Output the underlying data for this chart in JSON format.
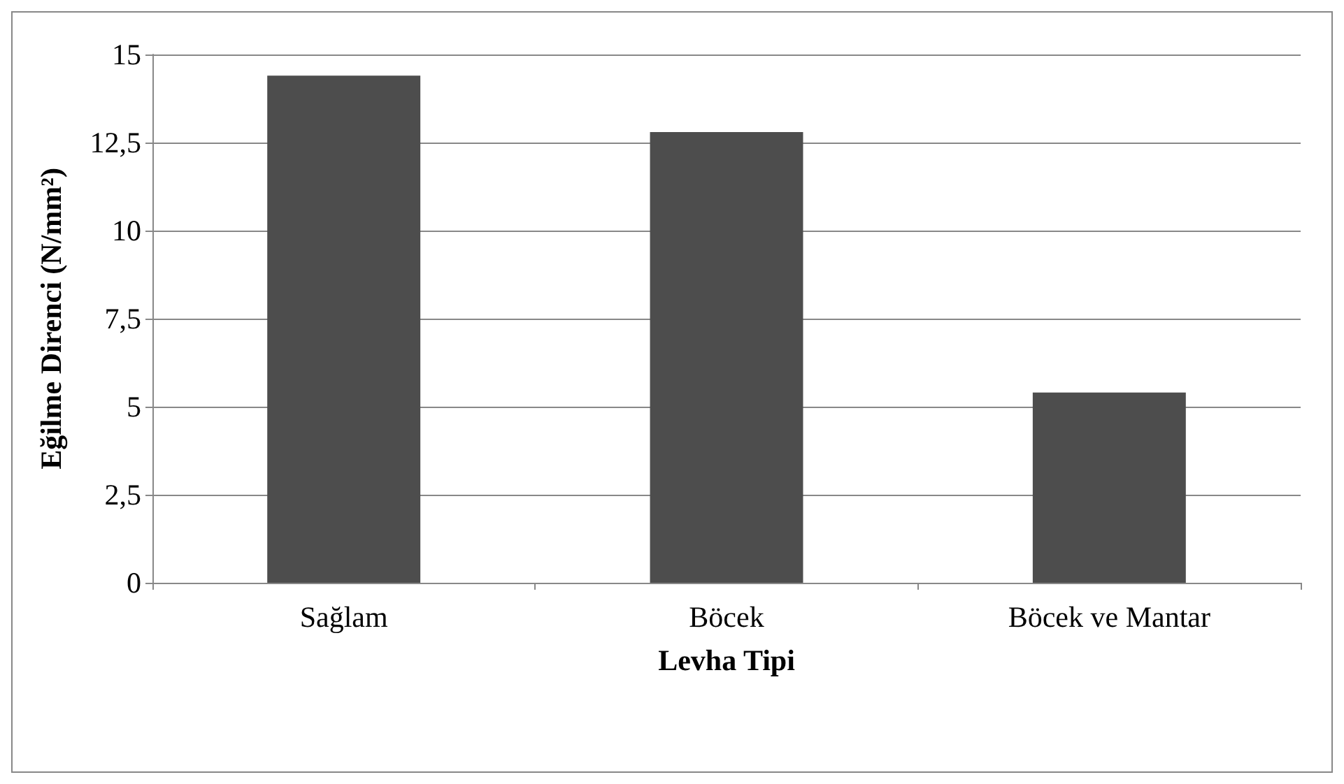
{
  "chart_data": {
    "type": "bar",
    "xlabel": "Levha Tipi",
    "ylabel": "Eğilme Direnci (N/mm²)",
    "categories": [
      "Sağlam",
      "Böcek",
      "Böcek ve Mantar"
    ],
    "values": [
      14.4,
      12.8,
      5.4
    ],
    "color": "#4d4d4d",
    "ylim": [
      0,
      15
    ],
    "yticks": [
      0,
      {
        "value": 2.5,
        "label": "2,5"
      },
      5,
      {
        "value": 7.5,
        "label": "7,5"
      },
      10,
      {
        "value": 12.5,
        "label": "12,5"
      },
      15
    ],
    "grid": "y"
  }
}
